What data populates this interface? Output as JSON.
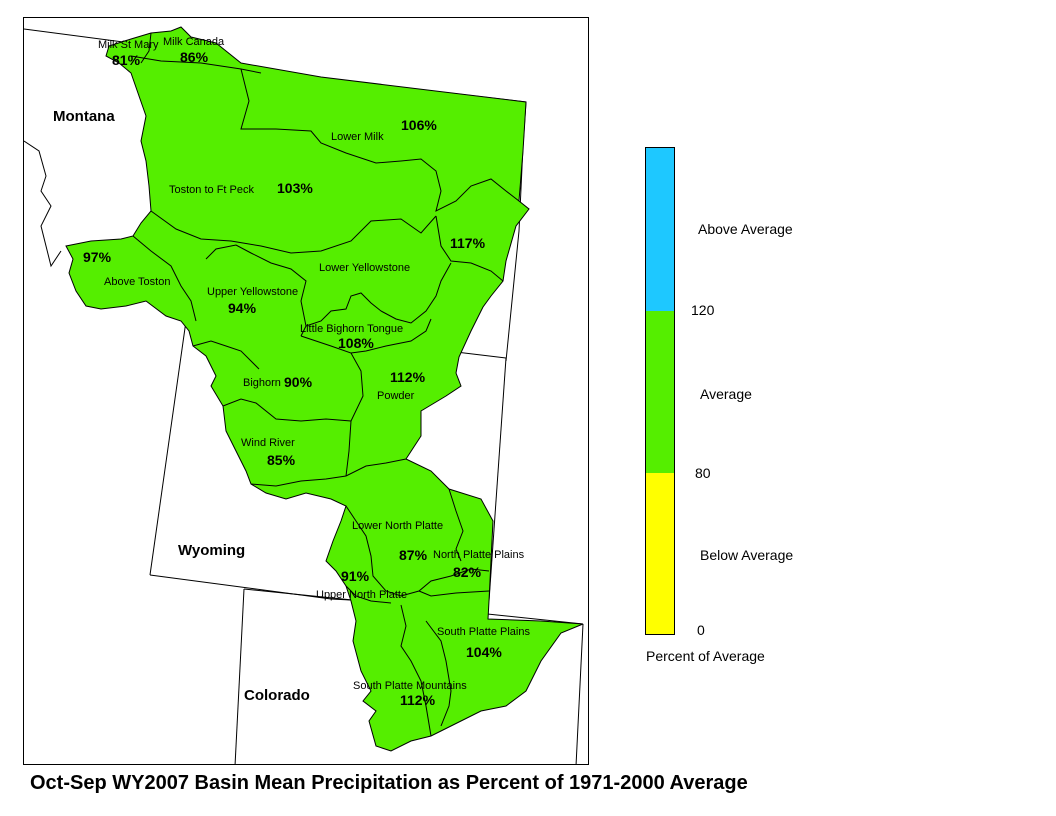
{
  "title": "Oct-Sep WY2007 Basin Mean Precipitation as Percent of 1971-2000 Average",
  "states": [
    "Montana",
    "Wyoming",
    "Colorado"
  ],
  "basins": [
    {
      "name": "Milk St Mary",
      "pct": "81%",
      "category": "Average"
    },
    {
      "name": "Milk Canada",
      "pct": "86%",
      "category": "Average"
    },
    {
      "name": "Lower Milk",
      "pct": "106%",
      "category": "Average"
    },
    {
      "name": "Toston to Ft Peck",
      "pct": "103%",
      "category": "Average"
    },
    {
      "name": "Above Toston",
      "pct": "97%",
      "category": "Average"
    },
    {
      "name": "",
      "pct": "117%",
      "category": "Average"
    },
    {
      "name": "Lower Yellowstone",
      "pct": "",
      "category": "Average"
    },
    {
      "name": "Upper Yellowstone",
      "pct": "94%",
      "category": "Average"
    },
    {
      "name": "Little Bighorn Tongue",
      "pct": "108%",
      "category": "Average"
    },
    {
      "name": "Bighorn",
      "pct": "90%",
      "category": "Average"
    },
    {
      "name": "Powder",
      "pct": "112%",
      "category": "Average"
    },
    {
      "name": "Wind River",
      "pct": "85%",
      "category": "Average"
    },
    {
      "name": "Lower North Platte",
      "pct": "87%",
      "category": "Average"
    },
    {
      "name": "North Platte Plains",
      "pct": "82%",
      "category": "Average"
    },
    {
      "name": "Upper North Platte",
      "pct": "91%",
      "category": "Average"
    },
    {
      "name": "South Platte Plains",
      "pct": "104%",
      "category": "Average"
    },
    {
      "name": "South Platte Mountains",
      "pct": "112%",
      "category": "Average"
    }
  ],
  "legend": {
    "title": "Percent of Average",
    "classes": [
      {
        "label": "Above Average",
        "color": "#1EC8FF",
        "min": 120
      },
      {
        "label": "Average",
        "color": "#55EE00",
        "min": 80,
        "max": 120
      },
      {
        "label": "Below Average",
        "color": "#FFFF00",
        "min": 0,
        "max": 80
      }
    ],
    "ticks": [
      "120",
      "80",
      "0"
    ]
  },
  "colors": {
    "basin_fill": "#55EE00",
    "basin_outline": "#000000",
    "boundary": "#000000"
  }
}
